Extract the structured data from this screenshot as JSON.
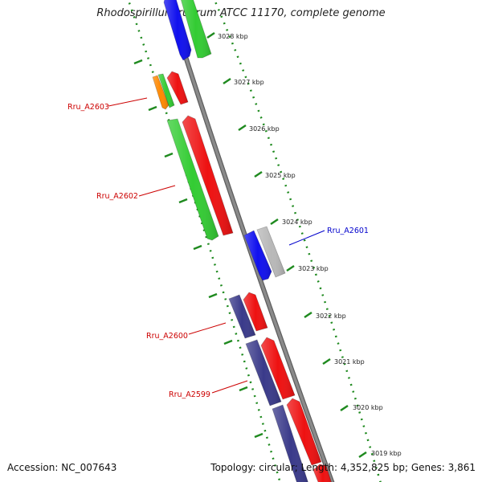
{
  "title": "Rhodospirillum rubrum ATCC 11170, complete genome",
  "footer": {
    "accession_label": "Accession:",
    "accession": "NC_007643",
    "topology_label": "Topology:",
    "topology": "circular",
    "length_label": "Length:",
    "length": "4,352,825 bp",
    "genes_label": "Genes:",
    "genes": "3,861"
  },
  "ticks": [
    "3028 kbp",
    "3027 kbp",
    "3026 kbp",
    "3025 kbp",
    "3024 kbp",
    "3023 kbp",
    "3022 kbp",
    "3021 kbp",
    "3020 kbp",
    "3019 kbp"
  ],
  "colors": {
    "backbone": "#8a8a8a",
    "ruler": "#1f8a1f",
    "label_red": "#cc0000",
    "label_blue": "#0000cc",
    "feature_blue": "#1010ee",
    "feature_green": "#33cc33",
    "feature_red": "#ee1111",
    "feature_orange": "#ff8800",
    "feature_gray": "#b8b8b8",
    "feature_navy": "#3a3a8a"
  },
  "gene_labels": [
    {
      "text": "Rru_A2603",
      "color": "red"
    },
    {
      "text": "Rru_A2602",
      "color": "red"
    },
    {
      "text": "Rru_A2601",
      "color": "blue"
    },
    {
      "text": "Rru_A2600",
      "color": "red"
    },
    {
      "text": "Rru_A2599",
      "color": "red"
    }
  ]
}
